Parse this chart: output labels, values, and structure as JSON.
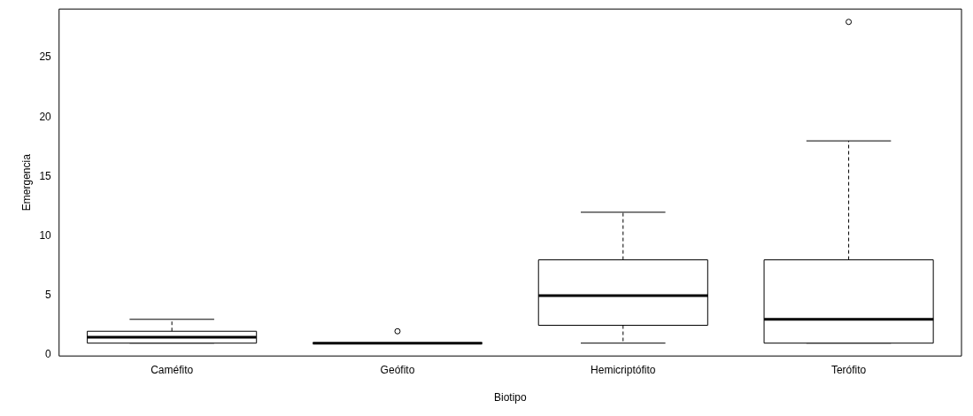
{
  "chart_data": {
    "type": "box",
    "xlabel": "Biotipo",
    "ylabel": "Emergencia",
    "categories": [
      "Caméfito",
      "Geófito",
      "Hemicriptófito",
      "Terófito"
    ],
    "boxes": [
      {
        "low": 1,
        "q1": 1,
        "median": 1.5,
        "q3": 2,
        "high": 3
      },
      {
        "low": 1,
        "q1": 1,
        "median": 1,
        "q3": 1,
        "high": 1,
        "outliers": [
          2
        ]
      },
      {
        "low": 1,
        "q1": 2.5,
        "median": 5,
        "q3": 8,
        "high": 12
      },
      {
        "low": 1,
        "q1": 1,
        "median": 3,
        "q3": 8,
        "high": 18,
        "outliers": [
          28
        ]
      }
    ],
    "ylim": [
      -0.08,
      29.08
    ],
    "yticks": [
      0,
      5,
      10,
      15,
      20,
      25
    ],
    "grid": false,
    "legend": false,
    "marker": "circle"
  }
}
